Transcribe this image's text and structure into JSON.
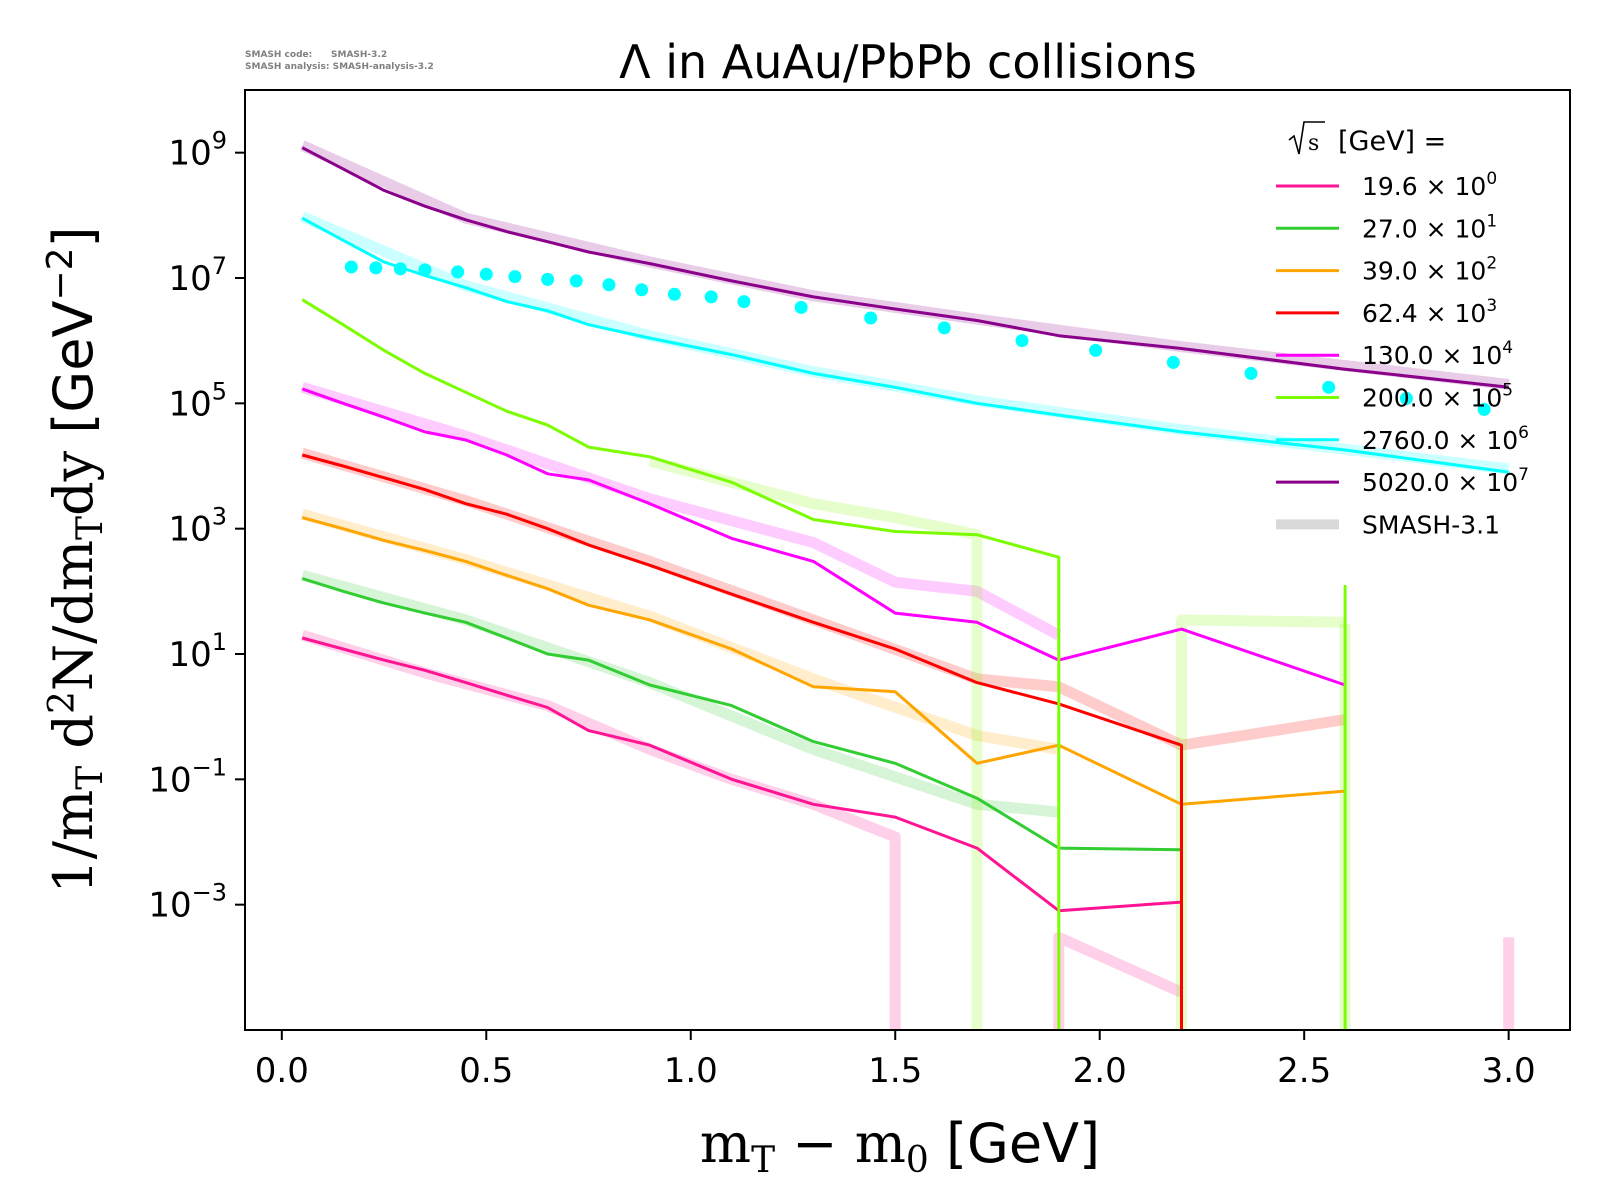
{
  "watermark": {
    "line1": "SMASH code:      SMASH-3.2",
    "line2": "SMASH analysis: SMASH-analysis-3.2"
  },
  "chart_data": {
    "type": "line",
    "title": "Λ in AuAu/PbPb collisions",
    "xlabel": "m_T − m_0 [GeV]",
    "ylabel": "1/m_T d²N/dm_T dy [GeV⁻²]",
    "xlim": [
      -0.09,
      3.15
    ],
    "ylim": [
      1e-05,
      10000000000.0
    ],
    "yscale": "log",
    "xticks": [
      "0.0",
      "0.5",
      "1.0",
      "1.5",
      "2.0",
      "2.5",
      "3.0"
    ],
    "yticks": [
      {
        "base": "10",
        "exp": "9"
      },
      {
        "base": "10",
        "exp": "7"
      },
      {
        "base": "10",
        "exp": "5"
      },
      {
        "base": "10",
        "exp": "3"
      },
      {
        "base": "10",
        "exp": "1"
      },
      {
        "base": "10",
        "exp": "−1"
      },
      {
        "base": "10",
        "exp": "−3"
      }
    ],
    "legend": {
      "placement": "top-right",
      "title": "[GeV] =",
      "title_symbol": "s",
      "entries": [
        {
          "label": "19.6",
          "factor_base": "10",
          "factor_exp": "0"
        },
        {
          "label": "27.0",
          "factor_base": "10",
          "factor_exp": "1"
        },
        {
          "label": "39.0",
          "factor_base": "10",
          "factor_exp": "2"
        },
        {
          "label": "62.4",
          "factor_base": "10",
          "factor_exp": "3"
        },
        {
          "label": "130.0",
          "factor_base": "10",
          "factor_exp": "4"
        },
        {
          "label": "200.0",
          "factor_base": "10",
          "factor_exp": "5"
        },
        {
          "label": "2760.0",
          "factor_base": "10",
          "factor_exp": "6"
        },
        {
          "label": "5020.0",
          "factor_base": "10",
          "factor_exp": "7"
        }
      ],
      "reference_label": "SMASH-3.1"
    },
    "series": [
      {
        "name": "19.6",
        "color": "#ff1493",
        "x": [
          0.05,
          0.15,
          0.25,
          0.35,
          0.45,
          0.55,
          0.65,
          0.75,
          0.9,
          1.1,
          1.3,
          1.5,
          1.7,
          1.9,
          2.2
        ],
        "y": [
          18,
          12,
          8,
          5.5,
          3.5,
          2.2,
          1.4,
          0.6,
          0.35,
          0.1,
          0.04,
          0.025,
          0.008,
          0.0008,
          0.0011
        ],
        "drop_after": true,
        "ref_x": [
          0.05,
          0.35,
          0.65,
          0.9,
          1.1,
          1.3,
          1.5,
          1.5
        ],
        "ref_y": [
          20,
          5,
          1.5,
          0.3,
          0.1,
          0.04,
          0.012,
          1e-05
        ],
        "ref2_x": [
          1.9,
          1.9,
          2.2
        ],
        "ref2_y": [
          1e-05,
          0.0003,
          4e-05
        ],
        "ref3_x": [
          3.0,
          3.0
        ],
        "ref3_y": [
          1e-05,
          0.0003
        ]
      },
      {
        "name": "27.0",
        "color": "#32cd32",
        "x": [
          0.05,
          0.15,
          0.25,
          0.35,
          0.45,
          0.55,
          0.65,
          0.75,
          0.9,
          1.1,
          1.3,
          1.5,
          1.7,
          1.9,
          2.2
        ],
        "y": [
          160,
          100,
          65,
          45,
          32,
          18,
          10,
          8,
          3.2,
          1.5,
          0.4,
          0.18,
          0.05,
          0.008,
          0.0075
        ],
        "drop_after": false,
        "ref_x": [
          0.05,
          0.45,
          0.9,
          1.3,
          1.7,
          1.9
        ],
        "ref_y": [
          180,
          35,
          3.5,
          0.3,
          0.04,
          0.03
        ]
      },
      {
        "name": "39.0",
        "color": "#ffa500",
        "x": [
          0.05,
          0.15,
          0.25,
          0.35,
          0.45,
          0.55,
          0.65,
          0.75,
          0.9,
          1.1,
          1.3,
          1.5,
          1.7,
          1.9,
          2.2,
          2.6
        ],
        "y": [
          1500,
          1000,
          650,
          450,
          300,
          180,
          110,
          60,
          35,
          12,
          3,
          2.5,
          0.18,
          0.35,
          0.04,
          0.065
        ],
        "drop_after": false,
        "ref_x": [
          0.05,
          0.45,
          0.9,
          1.3,
          1.7,
          1.9
        ],
        "ref_y": [
          1700,
          320,
          40,
          4,
          0.5,
          0.3
        ]
      },
      {
        "name": "62.4",
        "color": "#ff0000",
        "x": [
          0.05,
          0.15,
          0.25,
          0.35,
          0.45,
          0.55,
          0.65,
          0.75,
          0.9,
          1.1,
          1.3,
          1.5,
          1.7,
          1.9,
          2.2
        ],
        "y": [
          15000,
          10000,
          6500,
          4200,
          2500,
          1700,
          1000,
          550,
          260,
          90,
          32,
          12,
          3.5,
          1.6,
          0.35
        ],
        "drop_after": true,
        "ref_x": [
          0.05,
          0.45,
          0.9,
          1.3,
          1.7,
          1.9,
          2.2,
          2.6
        ],
        "ref_y": [
          16000,
          2800,
          300,
          35,
          4,
          3,
          0.35,
          0.9
        ]
      },
      {
        "name": "130.0",
        "color": "#ff00ff",
        "x": [
          0.05,
          0.15,
          0.25,
          0.35,
          0.45,
          0.55,
          0.65,
          0.75,
          0.9,
          1.1,
          1.3,
          1.5,
          1.7,
          1.9,
          2.2,
          2.6
        ],
        "y": [
          170000,
          100000,
          60000,
          35000,
          26000,
          15000,
          7500,
          6000,
          2500,
          700,
          300,
          45,
          32,
          8,
          25,
          3.2
        ],
        "drop_after": false,
        "ref_x": [
          0.05,
          0.45,
          0.9,
          1.3,
          1.5,
          1.7,
          1.9
        ],
        "ref_y": [
          180000,
          30000,
          3000,
          600,
          140,
          100,
          20
        ]
      },
      {
        "name": "200.0",
        "color": "#7cfc00",
        "x": [
          0.05,
          0.15,
          0.25,
          0.35,
          0.45,
          0.55,
          0.65,
          0.75,
          0.9,
          1.1,
          1.3,
          1.5,
          1.7,
          1.9,
          1.9,
          1.9,
          2.6,
          2.6,
          2.6
        ],
        "y": [
          4500000,
          1800000,
          700000,
          300000,
          150000,
          75000,
          45000,
          20000,
          14000,
          5500,
          1400,
          900,
          800,
          350,
          1e-05,
          null,
          1e-05,
          120,
          1e-05
        ],
        "drop_after": false,
        "ref_x": [
          0.9,
          1.3,
          1.5,
          1.7,
          1.7,
          1.7
        ],
        "ref_y": [
          12000,
          2500,
          1500,
          800,
          800,
          1e-05
        ],
        "ref2_x": [
          2.2,
          2.2,
          2.6
        ],
        "ref2_y": [
          1e-05,
          35,
          32
        ],
        "ref3_x": [
          2.6,
          2.6
        ],
        "ref3_y": [
          30,
          1e-05
        ]
      },
      {
        "name": "2760.0",
        "color": "#00ffff",
        "x": [
          0.05,
          0.15,
          0.25,
          0.35,
          0.45,
          0.55,
          0.65,
          0.75,
          0.9,
          1.1,
          1.3,
          1.5,
          1.7,
          1.9,
          2.2,
          2.6,
          3.0
        ],
        "y": [
          90000000,
          40000000,
          18000000,
          11000000,
          7000000,
          4200000,
          3000000,
          1800000,
          1100000,
          600000,
          300000,
          180000,
          100000,
          65000,
          35000,
          18000,
          8000
        ],
        "drop_after": false,
        "ref_x": [
          0.05,
          0.45,
          0.9,
          1.3,
          1.7,
          2.2,
          3.0
        ],
        "ref_y": [
          95000000,
          7500000,
          1200000,
          320000,
          110000,
          38000,
          9000
        ],
        "points_x": [
          0.17,
          0.23,
          0.29,
          0.35,
          0.43,
          0.5,
          0.57,
          0.65,
          0.72,
          0.8,
          0.88,
          0.96,
          1.05,
          1.13,
          1.27,
          1.44,
          1.62,
          1.81,
          1.99,
          2.18,
          2.37,
          2.56,
          2.75,
          2.94
        ],
        "points_y": [
          15000000,
          14500000,
          14000000,
          13500000,
          12500000,
          11500000,
          10500000,
          9500000,
          9000000,
          7800000,
          6500000,
          5500000,
          5000000,
          4200000,
          3400000,
          2300000,
          1600000,
          1000000,
          700000,
          450000,
          300000,
          180000,
          120000,
          80000
        ]
      },
      {
        "name": "5020.0",
        "color": "#8b008b",
        "x": [
          0.05,
          0.15,
          0.25,
          0.35,
          0.45,
          0.55,
          0.65,
          0.75,
          0.9,
          1.1,
          1.3,
          1.5,
          1.7,
          1.9,
          2.2,
          2.6,
          3.0
        ],
        "y": [
          1200000000,
          550000000,
          250000000,
          140000000,
          85000000,
          55000000,
          38000000,
          26000000,
          17000000,
          9000000,
          5000000,
          3200000,
          2100000,
          1200000,
          750000,
          350000,
          180000
        ],
        "drop_after": false,
        "ref_x": [
          0.05,
          0.45,
          0.9,
          1.3,
          1.7,
          2.2,
          3.0
        ],
        "ref_y": [
          1300000000,
          90000000,
          18000000,
          5200000,
          2200000,
          800000,
          200000
        ]
      }
    ]
  }
}
